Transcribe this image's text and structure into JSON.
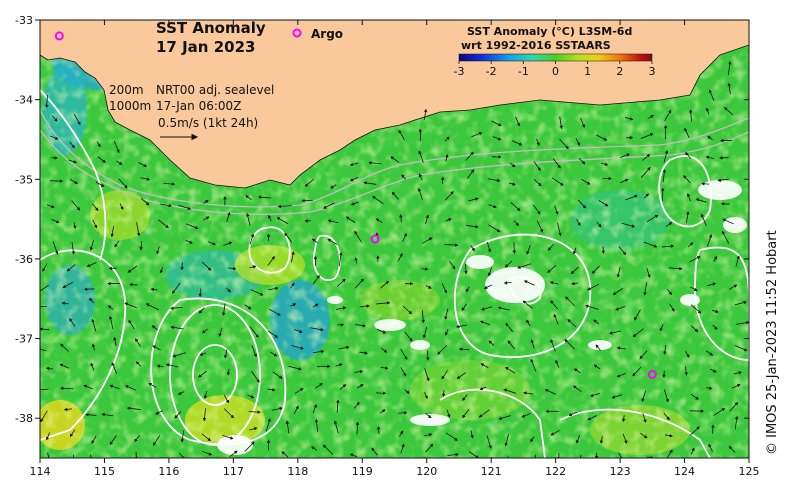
{
  "title": {
    "line1": "SST Anomaly",
    "line2": "17 Jan 2023"
  },
  "legend": {
    "argo_label": "Argo",
    "colorbar_title_line1": "SST Anomaly (°C) L3SM-6d",
    "colorbar_title_line2": "wrt 1992-2016 SSTAARS",
    "ticks": [
      "-3",
      "-2",
      "-1",
      "0",
      "1",
      "2",
      "3"
    ],
    "colors": [
      "#08087a",
      "#1030d8",
      "#18a0e8",
      "#30d8b0",
      "#48d020",
      "#b8e020",
      "#f0d010",
      "#f07010",
      "#c01010",
      "#801010"
    ]
  },
  "annotation": {
    "contour_200": "200m",
    "contour_1000": "1000m",
    "source": "NRT00 adj. sealevel",
    "time": "17-Jan 06:00Z",
    "arrow_scale": "0.5m/s (1kt 24h)"
  },
  "axes": {
    "x_ticks": [
      "114",
      "115",
      "116",
      "117",
      "118",
      "119",
      "120",
      "121",
      "122",
      "123",
      "124",
      "125"
    ],
    "y_ticks": [
      "-33",
      "-34",
      "-35",
      "-36",
      "-37",
      "-38"
    ]
  },
  "map_extent": {
    "lon": [
      114,
      125
    ],
    "lat": [
      -38.5,
      -33
    ]
  },
  "argo_floats": [
    {
      "lon": 114.3,
      "lat": -33.2
    },
    {
      "lon": 119.2,
      "lat": -35.75
    },
    {
      "lon": 123.5,
      "lat": -37.45
    }
  ],
  "credit": "© IMOS 25-Jan-2023 11:52 Hobart",
  "colors": {
    "land": "#f9c89b",
    "ocean_base": "#3cc83c",
    "argo": "#ff00ff",
    "contour": "#ffffff"
  }
}
